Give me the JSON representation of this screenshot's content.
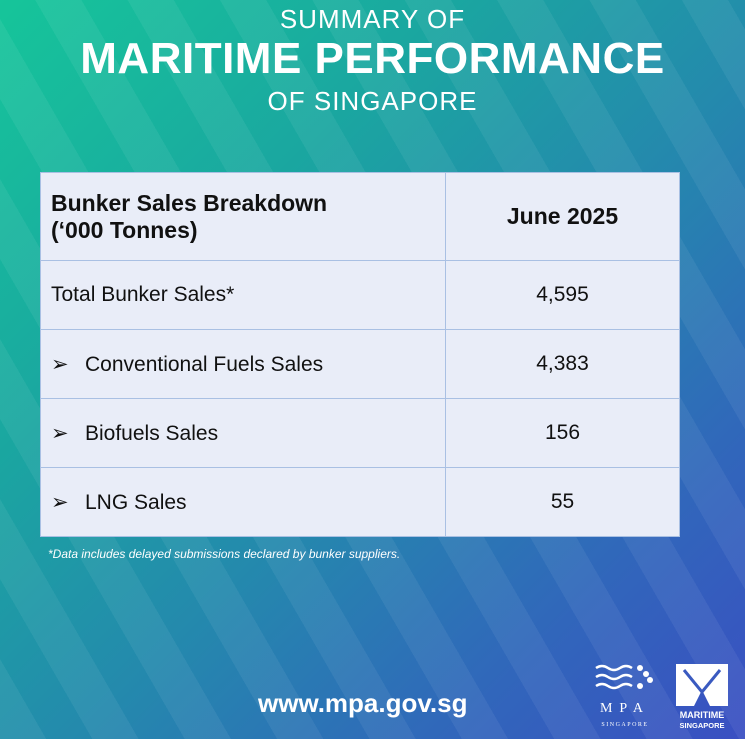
{
  "title": {
    "line1": "SUMMARY OF",
    "line2": "MARITIME PERFORMANCE",
    "line3": "OF SINGAPORE"
  },
  "table": {
    "header": {
      "label_line1": "Bunker Sales Breakdown",
      "label_line2": "(‘000 Tonnes)",
      "period": "June 2025"
    },
    "rows": [
      {
        "label": "Total Bunker Sales*",
        "value": "4,595",
        "bullet": false
      },
      {
        "label": "Conventional Fuels Sales",
        "value": "4,383",
        "bullet": true
      },
      {
        "label": "Biofuels Sales",
        "value": "156",
        "bullet": true
      },
      {
        "label": "LNG Sales",
        "value": "55",
        "bullet": true
      }
    ],
    "bullet_glyph": "➢"
  },
  "footnote": "*Data includes delayed submissions declared by bunker suppliers.",
  "website": "www.mpa.gov.sg",
  "logos": {
    "mpa": "MPA SINGAPORE",
    "maritime": "MARITIME SINGAPORE"
  },
  "colors": {
    "gradient_start": "#16c59a",
    "gradient_end": "#3a4fc2",
    "table_bg": "#e9edf8"
  }
}
